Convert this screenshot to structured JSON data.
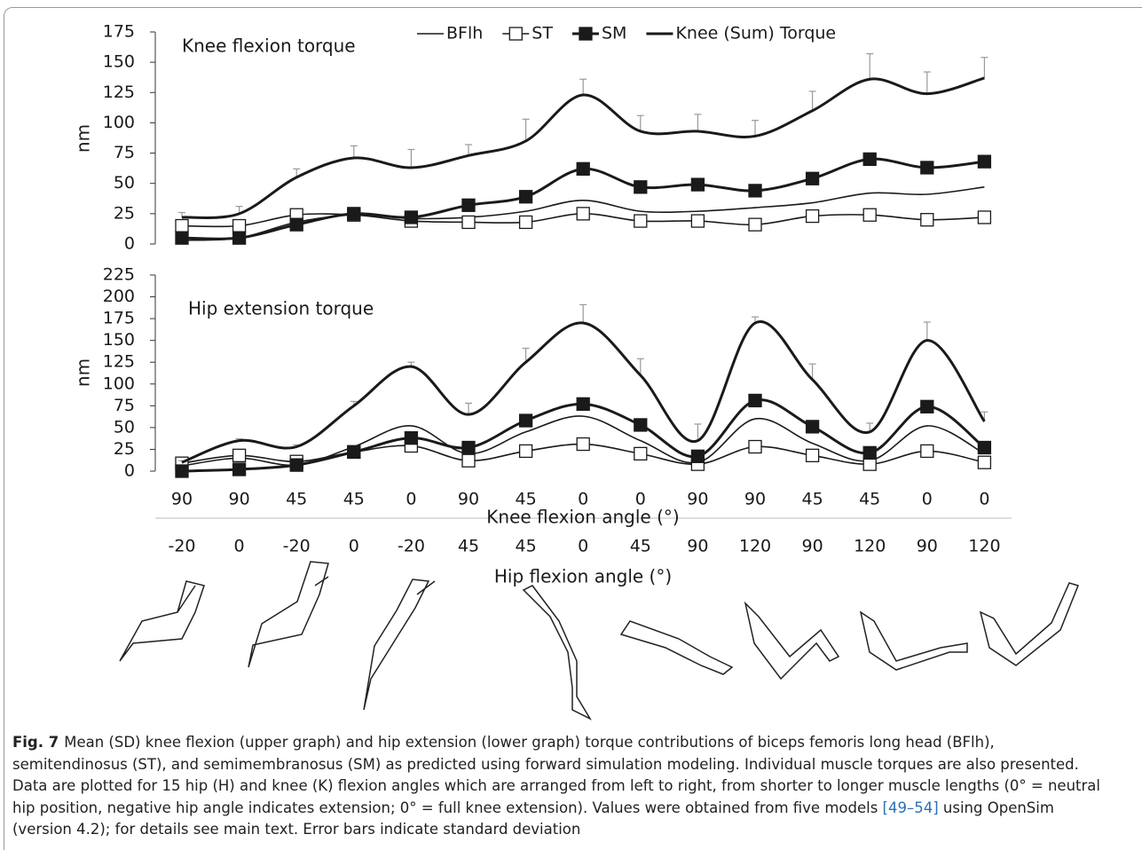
{
  "chart_data": [
    {
      "type": "line",
      "title": "Knee flexion torque",
      "ylabel": "nm",
      "ylim": [
        0,
        175
      ],
      "yticks": [
        0,
        25,
        50,
        75,
        100,
        125,
        150,
        175
      ],
      "legend": "top",
      "series": [
        {
          "name": "BFlh",
          "color": "#1a1a1a",
          "marker": "none",
          "width": 1.6,
          "values": [
            3,
            5,
            18,
            24,
            21,
            22,
            27,
            36,
            27,
            27,
            30,
            34,
            42,
            41,
            47
          ]
        },
        {
          "name": "ST",
          "color": "#1a1a1a",
          "marker": "square-open",
          "width": 1.6,
          "values": [
            15,
            15,
            24,
            24,
            19,
            18,
            18,
            25,
            19,
            19,
            16,
            23,
            24,
            20,
            22
          ]
        },
        {
          "name": "SM",
          "color": "#1a1a1a",
          "marker": "square-filled",
          "width": 3,
          "values": [
            5,
            5,
            16,
            25,
            22,
            32,
            39,
            62,
            47,
            49,
            44,
            54,
            70,
            63,
            68
          ]
        },
        {
          "name": "Knee (Sum) Torque",
          "color": "#1a1a1a",
          "marker": "none",
          "width": 3,
          "values": [
            22,
            25,
            55,
            71,
            63,
            73,
            85,
            123,
            93,
            93,
            89,
            110,
            136,
            124,
            137
          ],
          "error": [
            4,
            6,
            7,
            10,
            15,
            9,
            18,
            13,
            13,
            14,
            13,
            16,
            21,
            18,
            17
          ]
        }
      ]
    },
    {
      "type": "line",
      "title": "Hip extension torque",
      "ylabel": "nm",
      "ylim": [
        0,
        225
      ],
      "yticks": [
        0,
        25,
        50,
        75,
        100,
        125,
        150,
        175,
        200,
        225
      ],
      "series": [
        {
          "color": "#1a1a1a",
          "marker": "none",
          "width": 1.6,
          "values": [
            6,
            15,
            7,
            28,
            52,
            20,
            45,
            63,
            35,
            10,
            60,
            32,
            12,
            52,
            20
          ]
        },
        {
          "color": "#1a1a1a",
          "marker": "square-open",
          "width": 1.6,
          "values": [
            9,
            18,
            11,
            22,
            29,
            12,
            23,
            31,
            20,
            8,
            28,
            18,
            8,
            23,
            10
          ]
        },
        {
          "color": "#1a1a1a",
          "marker": "square-filled",
          "width": 3,
          "values": [
            0,
            2,
            7,
            22,
            38,
            27,
            58,
            77,
            53,
            17,
            81,
            51,
            21,
            74,
            27
          ]
        },
        {
          "color": "#1a1a1a",
          "marker": "none",
          "width": 3,
          "values": [
            10,
            35,
            28,
            75,
            120,
            65,
            125,
            170,
            110,
            35,
            170,
            105,
            45,
            150,
            57
          ],
          "error": [
            2,
            2,
            2,
            5,
            5,
            13,
            16,
            21,
            19,
            19,
            7,
            18,
            10,
            21,
            11
          ]
        }
      ]
    }
  ],
  "x_axes": {
    "knee": {
      "title": "Knee flexion angle (°)",
      "categories": [
        "90",
        "90",
        "45",
        "45",
        "0",
        "90",
        "45",
        "0",
        "0",
        "90",
        "90",
        "45",
        "45",
        "0",
        "0"
      ]
    },
    "hip": {
      "title": "Hip flexion angle (°)",
      "categories": [
        "-20",
        "0",
        "-20",
        "0",
        "-20",
        "45",
        "45",
        "0",
        "45",
        "90",
        "120",
        "90",
        "120",
        "90",
        "120"
      ]
    }
  },
  "caption": {
    "label": "Fig. 7",
    "lines": [
      "Mean (SD) knee flexion (upper graph) and hip extension (lower graph) torque contributions of biceps femoris long head (BFlh),",
      "semitendinosus (ST), and semimembranosus (SM) as predicted using forward simulation modeling. Individual muscle torques are also presented.",
      "Data are plotted for 15 hip (H) and knee (K) flexion angles which are arranged from left to right, from shorter to longer muscle lengths (0° = neutral",
      {
        "before": "hip position, negative hip angle indicates extension; 0° = full knee extension). Values were obtained from five models ",
        "citation": "[49–54]",
        "after": " using OpenSim"
      },
      "(version 4.2); for details see main text. Error bars indicate standard deviation"
    ]
  }
}
